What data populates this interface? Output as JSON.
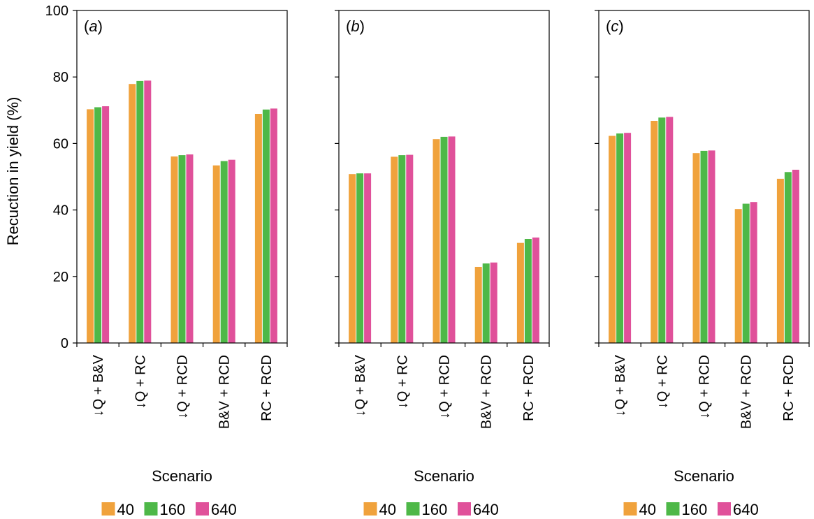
{
  "figure": {
    "y_axis_label": "Recuction in yield (%)",
    "x_axis_label": "Scenario"
  },
  "colors": {
    "s40": "#F0A23C",
    "s160": "#4EB848",
    "s640": "#E0519A"
  },
  "chart_data": [
    {
      "type": "bar",
      "panel": "(a)",
      "panel_letter": "a",
      "categories": [
        "↓Q + B&V",
        "↓Q + RC",
        "↓Q + RCD",
        "B&V + RCD",
        "RC + RCD"
      ],
      "series": [
        {
          "name": "40",
          "values": [
            70.3,
            77.9,
            56.1,
            53.4,
            68.9
          ]
        },
        {
          "name": "160",
          "values": [
            70.9,
            78.8,
            56.5,
            54.7,
            70.2
          ]
        },
        {
          "name": "640",
          "values": [
            71.2,
            78.9,
            56.7,
            55.1,
            70.5
          ]
        }
      ],
      "xlabel": "Scenario",
      "ylabel": "Recuction in yield (%)",
      "ylim": [
        0,
        100
      ],
      "yticks": [
        0,
        20,
        40,
        60,
        80,
        100
      ],
      "legend": [
        "40",
        "160",
        "640"
      ]
    },
    {
      "type": "bar",
      "panel": "(b)",
      "panel_letter": "b",
      "categories": [
        "↓Q + B&V",
        "↓Q + RC",
        "↓Q + RCD",
        "B&V + RCD",
        "RC + RCD"
      ],
      "series": [
        {
          "name": "40",
          "values": [
            50.8,
            56.0,
            61.3,
            22.9,
            30.1
          ]
        },
        {
          "name": "160",
          "values": [
            51.0,
            56.5,
            62.0,
            23.9,
            31.3
          ]
        },
        {
          "name": "640",
          "values": [
            51.0,
            56.6,
            62.1,
            24.2,
            31.7
          ]
        }
      ],
      "xlabel": "Scenario",
      "ylim": [
        0,
        100
      ],
      "legend": [
        "40",
        "160",
        "640"
      ]
    },
    {
      "type": "bar",
      "panel": "(c)",
      "panel_letter": "c",
      "categories": [
        "↓Q + B&V",
        "↓Q + RC",
        "↓Q + RCD",
        "B&V + RCD",
        "RC + RCD"
      ],
      "series": [
        {
          "name": "40",
          "values": [
            62.3,
            66.8,
            57.1,
            40.3,
            49.4
          ]
        },
        {
          "name": "160",
          "values": [
            63.0,
            67.8,
            57.8,
            41.9,
            51.4
          ]
        },
        {
          "name": "640",
          "values": [
            63.2,
            68.0,
            57.9,
            42.4,
            52.1
          ]
        }
      ],
      "xlabel": "Scenario",
      "ylim": [
        0,
        100
      ],
      "legend": [
        "40",
        "160",
        "640"
      ]
    }
  ]
}
